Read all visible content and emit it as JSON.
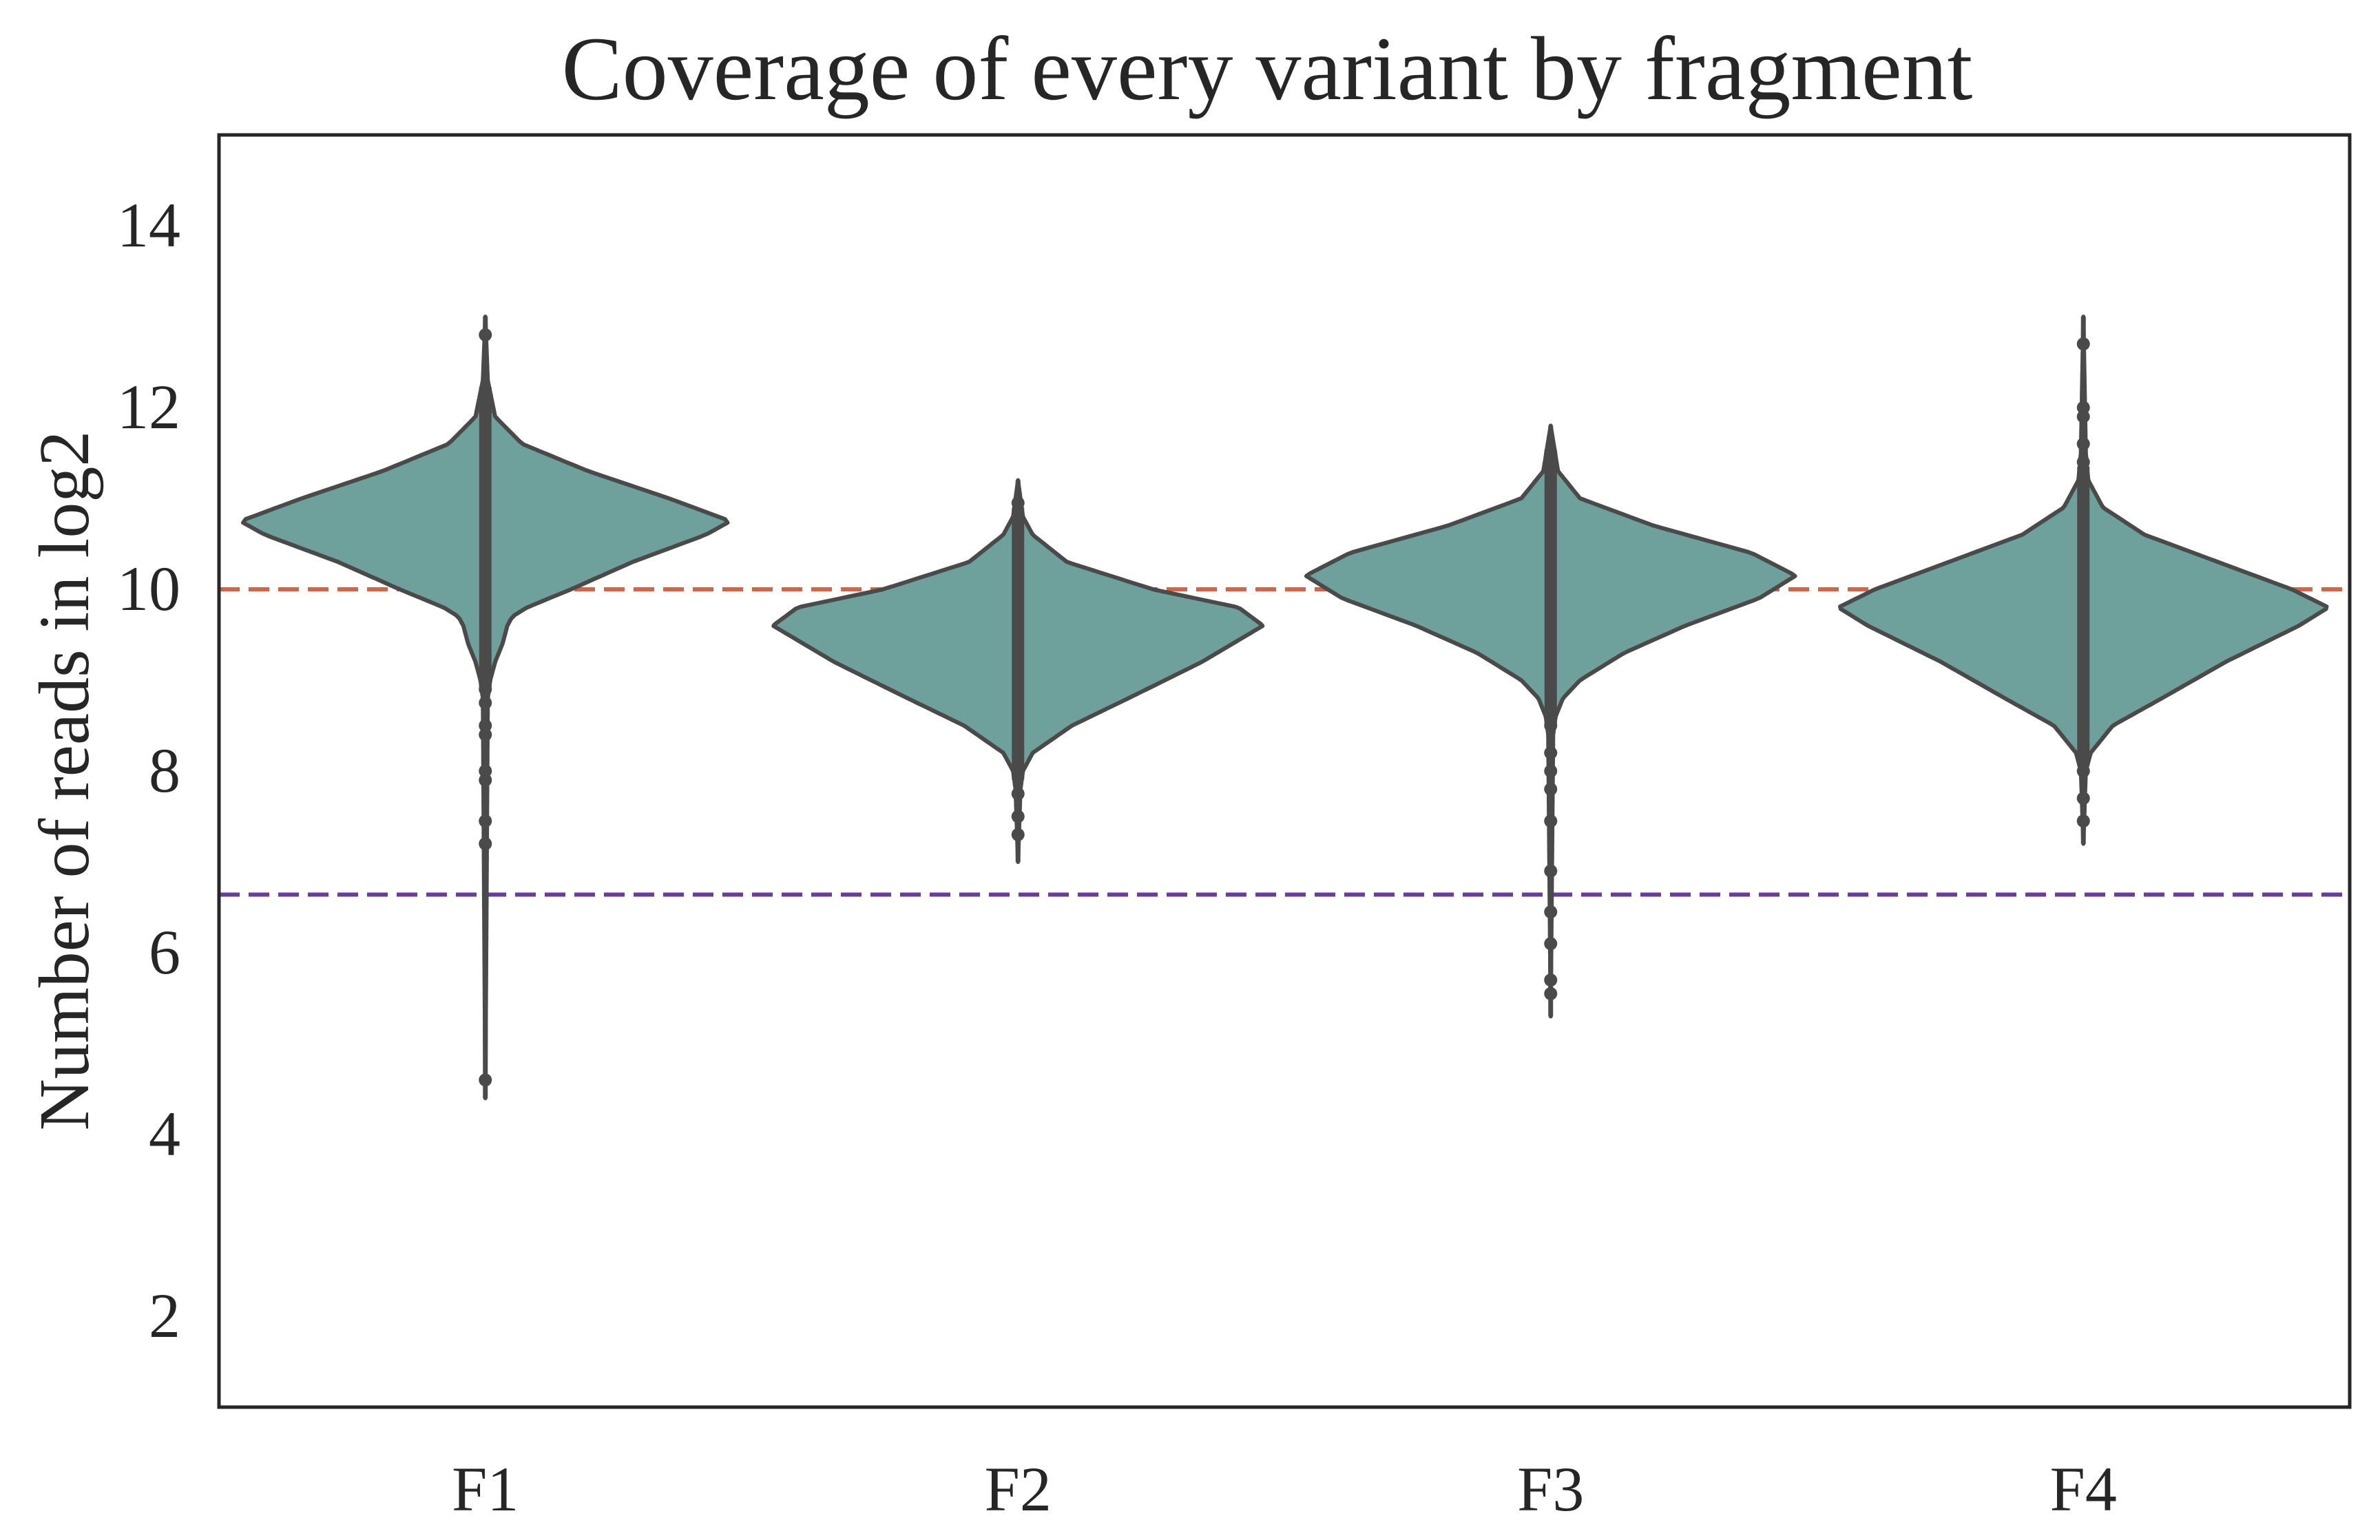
{
  "chart_data": {
    "type": "violin",
    "title": "Coverage of every variant by fragment",
    "xlabel": "",
    "ylabel": "Number of reads in log2",
    "categories": [
      "F1",
      "F2",
      "F3",
      "F4"
    ],
    "ylim": [
      1,
      15
    ],
    "yticks": [
      2,
      4,
      6,
      8,
      10,
      12,
      14
    ],
    "grid": false,
    "legend": "none",
    "colors": {
      "violin_fill": "#6fa19c",
      "violin_edge": "#4a4a4a",
      "inner": "#4a4a4a",
      "line_upper": "#d0654a",
      "line_lower": "#6a3d9a",
      "frame": "#262626"
    },
    "reference_lines": [
      {
        "y": 10.0,
        "color": "#d0654a",
        "style": "dashed"
      },
      {
        "y": 6.64,
        "color": "#6a3d9a",
        "style": "dashed"
      }
    ],
    "violins": [
      {
        "category": "F1",
        "min": 4.4,
        "max": 13.0,
        "median": 10.5,
        "density": [
          [
            4.4,
            0.0
          ],
          [
            8.8,
            0.01
          ],
          [
            9.0,
            0.02
          ],
          [
            9.2,
            0.04
          ],
          [
            9.4,
            0.07
          ],
          [
            9.6,
            0.09
          ],
          [
            9.7,
            0.11
          ],
          [
            9.8,
            0.17
          ],
          [
            10.0,
            0.35
          ],
          [
            10.3,
            0.6
          ],
          [
            10.6,
            0.9
          ],
          [
            10.75,
            1.0
          ],
          [
            11.0,
            0.75
          ],
          [
            11.3,
            0.42
          ],
          [
            11.6,
            0.15
          ],
          [
            11.9,
            0.04
          ],
          [
            12.3,
            0.01
          ],
          [
            13.0,
            0.0
          ]
        ],
        "outliers": [
          12.8,
          11.95,
          8.9,
          8.75,
          8.5,
          8.4,
          8.0,
          7.9,
          7.45,
          7.2,
          4.6
        ]
      },
      {
        "category": "F2",
        "min": 7.0,
        "max": 11.2,
        "median": 9.6,
        "density": [
          [
            7.0,
            0.0
          ],
          [
            7.8,
            0.01
          ],
          [
            8.0,
            0.02
          ],
          [
            8.2,
            0.06
          ],
          [
            8.5,
            0.22
          ],
          [
            8.8,
            0.45
          ],
          [
            9.2,
            0.75
          ],
          [
            9.6,
            1.0
          ],
          [
            9.8,
            0.9
          ],
          [
            10.0,
            0.55
          ],
          [
            10.3,
            0.2
          ],
          [
            10.6,
            0.06
          ],
          [
            10.8,
            0.02
          ],
          [
            11.2,
            0.0
          ]
        ],
        "outliers": [
          10.95,
          7.75,
          7.5,
          7.3
        ]
      },
      {
        "category": "F3",
        "min": 5.3,
        "max": 11.8,
        "median": 10.1,
        "density": [
          [
            5.3,
            0.0
          ],
          [
            8.4,
            0.01
          ],
          [
            8.6,
            0.02
          ],
          [
            8.8,
            0.05
          ],
          [
            9.0,
            0.12
          ],
          [
            9.3,
            0.3
          ],
          [
            9.6,
            0.55
          ],
          [
            9.9,
            0.85
          ],
          [
            10.15,
            1.0
          ],
          [
            10.4,
            0.82
          ],
          [
            10.7,
            0.42
          ],
          [
            11.0,
            0.12
          ],
          [
            11.3,
            0.03
          ],
          [
            11.8,
            0.0
          ]
        ],
        "outliers": [
          11.5,
          8.5,
          8.2,
          8.0,
          7.8,
          7.45,
          6.9,
          6.45,
          6.1,
          5.7,
          5.55
        ]
      },
      {
        "category": "F4",
        "min": 7.2,
        "max": 13.0,
        "median": 9.8,
        "density": [
          [
            7.2,
            0.0
          ],
          [
            8.0,
            0.01
          ],
          [
            8.2,
            0.03
          ],
          [
            8.5,
            0.12
          ],
          [
            8.8,
            0.32
          ],
          [
            9.2,
            0.58
          ],
          [
            9.6,
            0.88
          ],
          [
            9.8,
            1.0
          ],
          [
            10.0,
            0.85
          ],
          [
            10.3,
            0.55
          ],
          [
            10.6,
            0.25
          ],
          [
            10.9,
            0.08
          ],
          [
            11.2,
            0.02
          ],
          [
            11.5,
            0.01
          ],
          [
            13.0,
            0.0
          ]
        ],
        "outliers": [
          12.7,
          12.0,
          11.9,
          11.6,
          11.4,
          11.2,
          8.0,
          7.7,
          7.45
        ]
      }
    ]
  }
}
